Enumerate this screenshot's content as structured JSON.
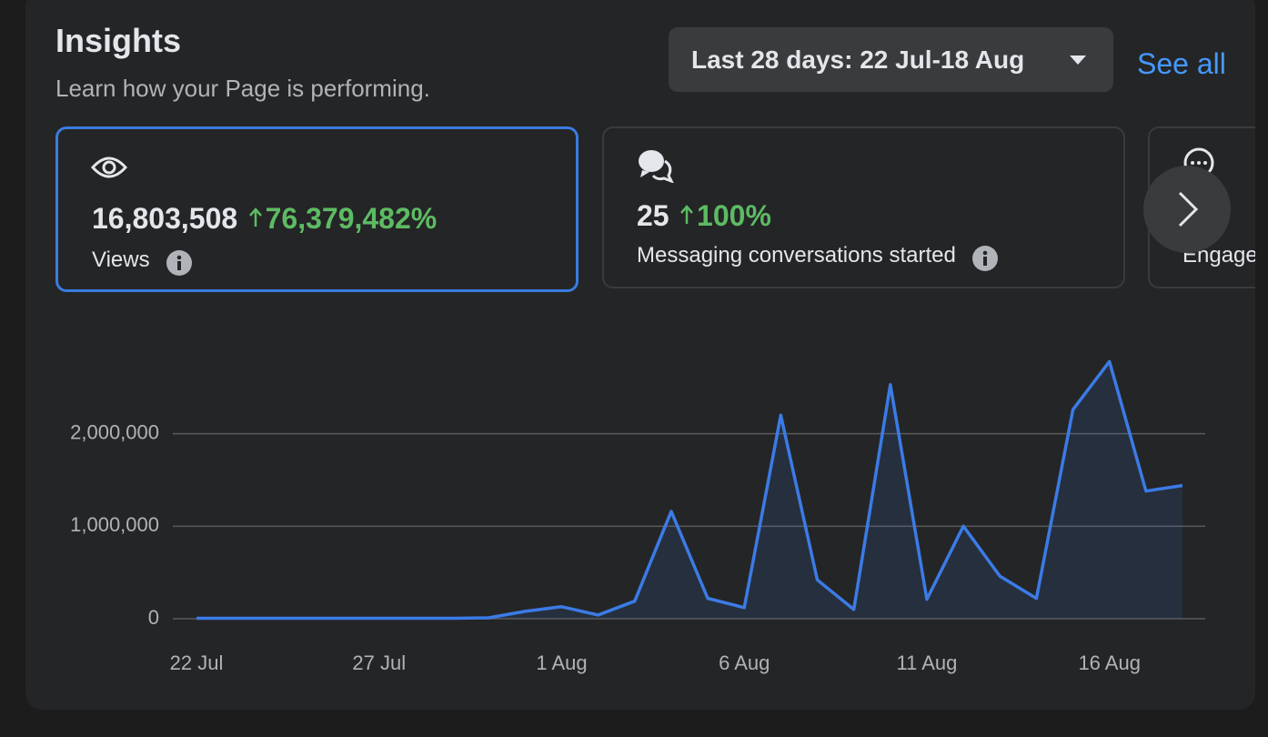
{
  "header": {
    "title": "Insights",
    "subtitle": "Learn how your Page is performing.",
    "date_range": "Last 28 days: 22 Jul-18 Aug",
    "see_all": "See all"
  },
  "cards": [
    {
      "value": "16,803,508",
      "change": "76,379,482%",
      "label": "Views"
    },
    {
      "value": "25",
      "change": "100%",
      "label": "Messaging conversations started"
    },
    {
      "label": "Engagement"
    }
  ],
  "chart_data": {
    "type": "area",
    "categories": [
      "22 Jul",
      null,
      null,
      null,
      null,
      "27 Jul",
      null,
      null,
      null,
      null,
      "1 Aug",
      null,
      null,
      null,
      null,
      "6 Aug",
      null,
      null,
      null,
      null,
      "11 Aug",
      null,
      null,
      null,
      null,
      "16 Aug",
      null,
      null
    ],
    "series": [
      {
        "name": "Views",
        "color": "#3b7be6",
        "values": [
          5000,
          5000,
          5000,
          5000,
          5000,
          5000,
          5000,
          5000,
          10000,
          80000,
          130000,
          40000,
          190000,
          1160000,
          220000,
          120000,
          2200000,
          420000,
          100000,
          2530000,
          210000,
          1000000,
          460000,
          220000,
          2260000,
          2780000,
          1380000,
          1440000
        ]
      }
    ],
    "ylim": [
      0,
      3000000
    ],
    "yticks": [
      0,
      {
        "value": 1000000,
        "label": "1,000,000"
      },
      {
        "value": 2000000,
        "label": "2,000,000"
      }
    ],
    "grid": true
  }
}
